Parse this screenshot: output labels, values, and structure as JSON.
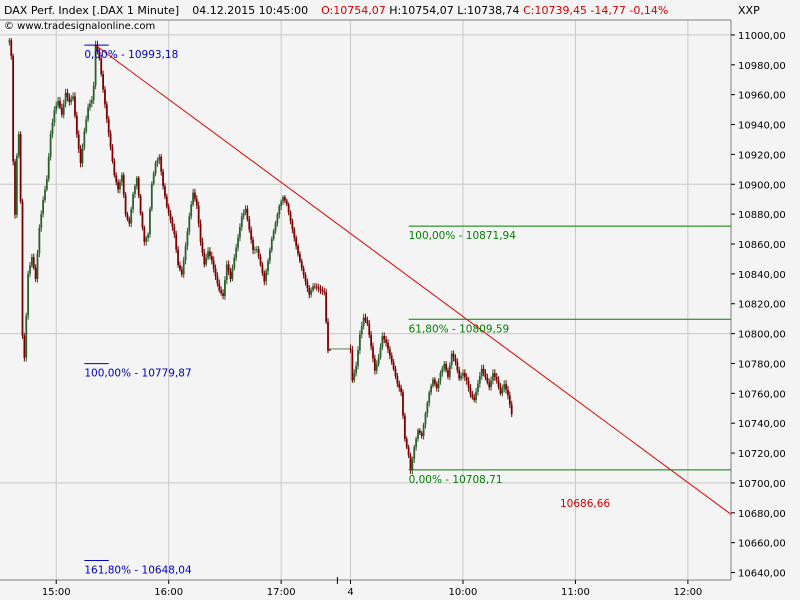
{
  "header": {
    "instrument": "DAX Perf. Index [.DAX  1 Minute]",
    "datetime": "04.12.2015 10:45:00",
    "open": "O:10754,07",
    "high": "H:10754,07",
    "low": "L:10738,74",
    "close": "C:10739,45  -14,77  -0,14%",
    "symbol": "XXP",
    "source": "© www.tradesignalonline.com"
  },
  "colors": {
    "background": "#f4f4f4",
    "grid": "#c8c8c8",
    "bull_candle": "#2e5e2e",
    "bear_candle": "#7a0000",
    "trendline": "#e00000",
    "fib_blue": "#0000c0",
    "fib_green": "#008000",
    "red_label": "#d40000"
  },
  "chart_data": {
    "type": "candlestick",
    "ylim": [
      10635,
      11010
    ],
    "y_ticks": [
      "11000,00",
      "10980,00",
      "10960,00",
      "10940,00",
      "10920,00",
      "10900,00",
      "10880,00",
      "10860,00",
      "10840,00",
      "10820,00",
      "10800,00",
      "10780,00",
      "10760,00",
      "10740,00",
      "10720,00",
      "10700,00",
      "10680,00",
      "10660,00",
      "10640,00"
    ],
    "y_tick_values": [
      11000,
      10980,
      10960,
      10940,
      10920,
      10900,
      10880,
      10860,
      10840,
      10820,
      10800,
      10780,
      10760,
      10740,
      10720,
      10700,
      10680,
      10660,
      10640
    ],
    "x_ticks": [
      "15:00",
      "16:00",
      "17:00",
      "4",
      "10:00",
      "11:00",
      "12:00"
    ],
    "x_tick_minutes": [
      30,
      90,
      150,
      187,
      247,
      307,
      367
    ],
    "x_domain_minutes": [
      0,
      390
    ],
    "grid": true,
    "session_break_minute": 180,
    "price_path": [
      [
        5,
        10995
      ],
      [
        6,
        10985
      ],
      [
        7,
        10915
      ],
      [
        8,
        10880
      ],
      [
        9,
        10920
      ],
      [
        10,
        10935
      ],
      [
        11,
        10890
      ],
      [
        12,
        10800
      ],
      [
        13,
        10785
      ],
      [
        15,
        10840
      ],
      [
        17,
        10850
      ],
      [
        19,
        10835
      ],
      [
        21,
        10870
      ],
      [
        23,
        10890
      ],
      [
        25,
        10905
      ],
      [
        27,
        10935
      ],
      [
        29,
        10950
      ],
      [
        31,
        10955
      ],
      [
        33,
        10945
      ],
      [
        35,
        10960
      ],
      [
        37,
        10955
      ],
      [
        39,
        10960
      ],
      [
        41,
        10935
      ],
      [
        43,
        10915
      ],
      [
        45,
        10935
      ],
      [
        47,
        10950
      ],
      [
        49,
        10955
      ],
      [
        50,
        10965
      ],
      [
        51,
        10993
      ],
      [
        53,
        10985
      ],
      [
        55,
        10965
      ],
      [
        57,
        10945
      ],
      [
        59,
        10925
      ],
      [
        61,
        10905
      ],
      [
        63,
        10895
      ],
      [
        65,
        10905
      ],
      [
        67,
        10880
      ],
      [
        69,
        10875
      ],
      [
        71,
        10895
      ],
      [
        73,
        10905
      ],
      [
        75,
        10880
      ],
      [
        77,
        10860
      ],
      [
        79,
        10865
      ],
      [
        81,
        10900
      ],
      [
        83,
        10915
      ],
      [
        85,
        10920
      ],
      [
        87,
        10900
      ],
      [
        89,
        10885
      ],
      [
        91,
        10875
      ],
      [
        93,
        10865
      ],
      [
        95,
        10845
      ],
      [
        97,
        10840
      ],
      [
        99,
        10860
      ],
      [
        101,
        10880
      ],
      [
        103,
        10895
      ],
      [
        105,
        10885
      ],
      [
        107,
        10860
      ],
      [
        109,
        10845
      ],
      [
        111,
        10855
      ],
      [
        113,
        10850
      ],
      [
        115,
        10840
      ],
      [
        117,
        10830
      ],
      [
        119,
        10825
      ],
      [
        121,
        10845
      ],
      [
        123,
        10835
      ],
      [
        125,
        10850
      ],
      [
        127,
        10865
      ],
      [
        129,
        10880
      ],
      [
        131,
        10885
      ],
      [
        133,
        10870
      ],
      [
        135,
        10855
      ],
      [
        137,
        10855
      ],
      [
        139,
        10845
      ],
      [
        141,
        10835
      ],
      [
        143,
        10850
      ],
      [
        145,
        10865
      ],
      [
        147,
        10875
      ],
      [
        149,
        10885
      ],
      [
        151,
        10890
      ],
      [
        153,
        10885
      ],
      [
        155,
        10875
      ],
      [
        157,
        10865
      ],
      [
        159,
        10855
      ],
      [
        161,
        10845
      ],
      [
        163,
        10835
      ],
      [
        165,
        10825
      ],
      [
        167,
        10830
      ],
      [
        169,
        10830
      ],
      [
        173,
        10829
      ],
      [
        175,
        10790
      ],
      [
        187,
        10790
      ],
      [
        188,
        10770
      ],
      [
        190,
        10780
      ],
      [
        192,
        10800
      ],
      [
        194,
        10810
      ],
      [
        196,
        10805
      ],
      [
        198,
        10790
      ],
      [
        200,
        10775
      ],
      [
        202,
        10785
      ],
      [
        204,
        10800
      ],
      [
        206,
        10795
      ],
      [
        208,
        10785
      ],
      [
        210,
        10775
      ],
      [
        212,
        10765
      ],
      [
        214,
        10760
      ],
      [
        216,
        10730
      ],
      [
        218,
        10720
      ],
      [
        219,
        10710
      ],
      [
        221,
        10725
      ],
      [
        223,
        10735
      ],
      [
        225,
        10730
      ],
      [
        227,
        10745
      ],
      [
        229,
        10760
      ],
      [
        231,
        10770
      ],
      [
        233,
        10765
      ],
      [
        235,
        10775
      ],
      [
        237,
        10780
      ],
      [
        239,
        10770
      ],
      [
        241,
        10785
      ],
      [
        243,
        10780
      ],
      [
        245,
        10770
      ],
      [
        247,
        10775
      ],
      [
        249,
        10770
      ],
      [
        251,
        10760
      ],
      [
        253,
        10755
      ],
      [
        255,
        10765
      ],
      [
        257,
        10775
      ],
      [
        259,
        10770
      ],
      [
        261,
        10765
      ],
      [
        263,
        10775
      ],
      [
        265,
        10770
      ],
      [
        267,
        10760
      ],
      [
        269,
        10765
      ],
      [
        271,
        10757
      ],
      [
        273,
        10745
      ]
    ],
    "trendline": {
      "from": [
        51,
        10993
      ],
      "to": [
        390,
        10679
      ]
    },
    "annotations": [
      {
        "text": "0,00% - 10993,18",
        "level": 10993.18,
        "x0": 45,
        "x1": 58,
        "color": "#0000c0"
      },
      {
        "text": "100,00% - 10779,87",
        "level": 10779.87,
        "x0": 45,
        "x1": 58,
        "color": "#0000c0"
      },
      {
        "text": "161,80% - 10648,04",
        "level": 10648.04,
        "x0": 45,
        "x1": 58,
        "color": "#0000c0"
      },
      {
        "text": "100,00% - 10871,94",
        "level": 10871.94,
        "x0": 218,
        "x1": 390,
        "color": "#008000"
      },
      {
        "text": "61,80% - 10809,59",
        "level": 10809.59,
        "x0": 218,
        "x1": 390,
        "color": "#008000"
      },
      {
        "text": "0,00% - 10708,71",
        "level": 10708.71,
        "x0": 218,
        "x1": 390,
        "color": "#008000"
      },
      {
        "text": "10686,66",
        "level": 10686.66,
        "x0": 0,
        "x1": 0,
        "color": "#d40000"
      }
    ]
  }
}
